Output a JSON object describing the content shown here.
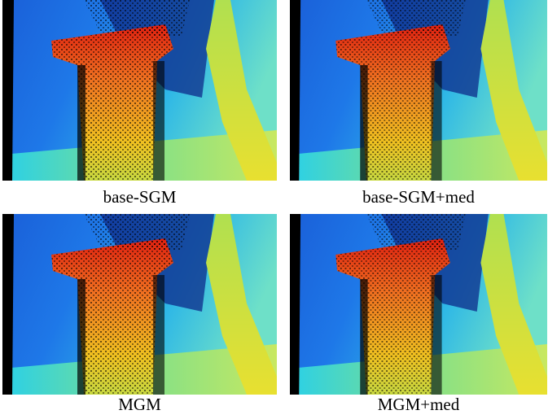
{
  "figure": {
    "panels": [
      {
        "caption": "base-SGM"
      },
      {
        "caption": "base-SGM+med"
      },
      {
        "caption": "MGM"
      },
      {
        "caption": "MGM+med"
      }
    ]
  }
}
